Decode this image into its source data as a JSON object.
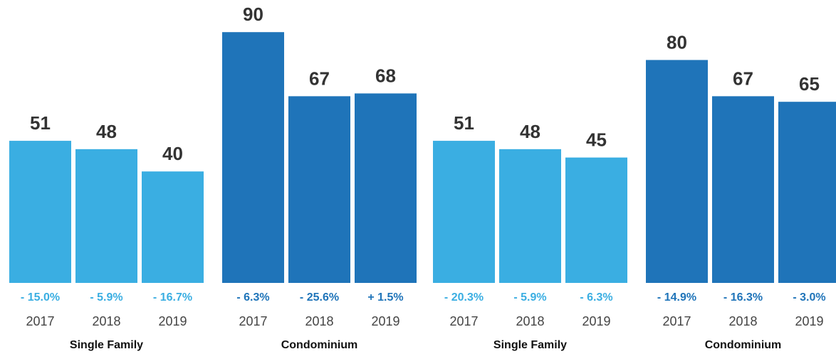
{
  "colors": {
    "single_family": "#3aaee2",
    "condominium": "#1f74b9",
    "value_text": "#333333",
    "year_text": "#444444",
    "group_text": "#111111"
  },
  "chart_data": [
    {
      "type": "bar",
      "ylim": [
        0,
        100
      ],
      "groups": [
        {
          "name": "Single Family",
          "color": "single_family",
          "categories": [
            "2017",
            "2018",
            "2019"
          ],
          "values": [
            51,
            48,
            40
          ],
          "changes": [
            "- 15.0%",
            "- 5.9%",
            "- 16.7%"
          ]
        },
        {
          "name": "Condominium",
          "color": "condominium",
          "categories": [
            "2017",
            "2018",
            "2019"
          ],
          "values": [
            90,
            67,
            68
          ],
          "changes": [
            "- 6.3%",
            "- 25.6%",
            "+ 1.5%"
          ]
        }
      ]
    },
    {
      "type": "bar",
      "ylim": [
        0,
        100
      ],
      "groups": [
        {
          "name": "Single Family",
          "color": "single_family",
          "categories": [
            "2017",
            "2018",
            "2019"
          ],
          "values": [
            51,
            48,
            45
          ],
          "changes": [
            "- 20.3%",
            "- 5.9%",
            "- 6.3%"
          ]
        },
        {
          "name": "Condominium",
          "color": "condominium",
          "categories": [
            "2017",
            "2018",
            "2019"
          ],
          "values": [
            80,
            67,
            65
          ],
          "changes": [
            "- 14.9%",
            "- 16.3%",
            "- 3.0%"
          ]
        }
      ]
    }
  ]
}
